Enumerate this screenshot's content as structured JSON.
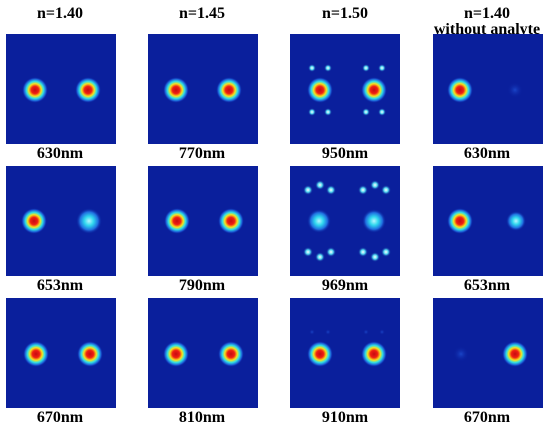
{
  "columns": [
    {
      "title": "n=1.40",
      "subtitle": ""
    },
    {
      "title": "n=1.45",
      "subtitle": ""
    },
    {
      "title": "n=1.50",
      "subtitle": ""
    },
    {
      "title": "n=1.40",
      "subtitle": "without analyte"
    }
  ],
  "rows": [
    [
      "630nm",
      "770nm",
      "950nm",
      "630nm"
    ],
    [
      "653nm",
      "790nm",
      "969nm",
      "653nm"
    ],
    [
      "670nm",
      "810nm",
      "910nm",
      "670nm"
    ]
  ],
  "colors": {
    "background": "#0a1f9c",
    "core_red": "#e0141a",
    "core_yellow": "#f7e21a",
    "core_cyan": "#28d6e8"
  }
}
